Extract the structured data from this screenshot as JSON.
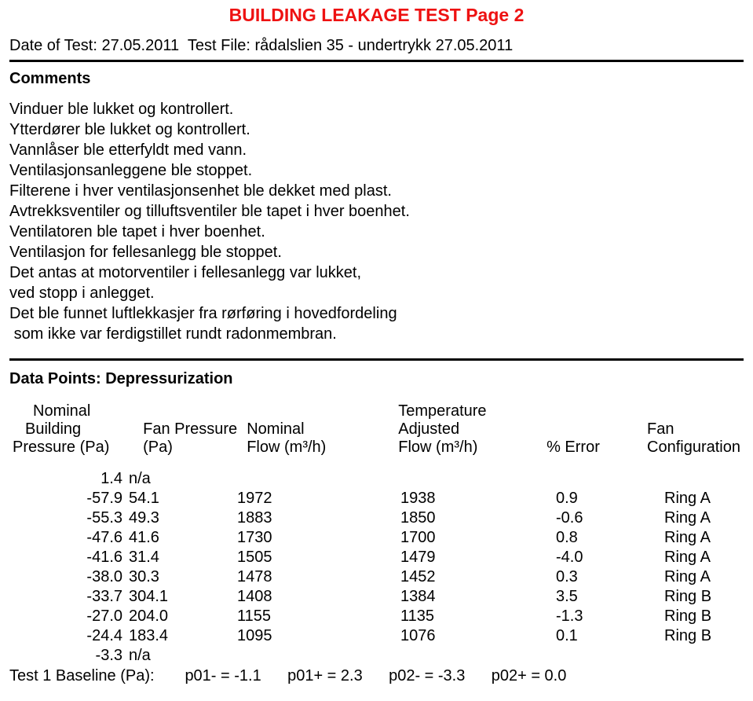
{
  "header": {
    "title": "BUILDING LEAKAGE TEST   Page 2",
    "date_label": "Date of Test:",
    "date_value": "27.05.2011",
    "file_label": "Test File:",
    "file_value": "rådalslien 35 - undertrykk 27.05.2011"
  },
  "comments": {
    "heading": "Comments",
    "lines": [
      "Vinduer ble lukket og kontrollert.",
      "Ytterdører ble lukket og kontrollert.",
      "Vannlåser ble etterfyldt med vann.",
      "Ventilasjonsanleggene ble stoppet.",
      "Filterene i hver ventilasjonsenhet ble dekket med plast.",
      "Avtrekksventiler og tilluftsventiler ble tapet i hver boenhet.",
      "Ventilatoren ble tapet i hver boenhet.",
      "Ventilasjon for fellesanlegg ble stoppet.",
      "Det antas at motorventiler i fellesanlegg var lukket,",
      "ved stopp i anlegget.",
      "Det ble funnet luftlekkasjer fra rørføring i hovedfordeling",
      " som ikke var ferdigstillet rundt radonmembran."
    ]
  },
  "datapoints": {
    "heading": "Data Points:  Depressurization",
    "col_headers": {
      "c1a": "Nominal",
      "c1b": "Building",
      "c1c": "Pressure (Pa)",
      "c2b": "Fan Pressure",
      "c2c": "(Pa)",
      "c3b": "Nominal",
      "c3c": "Flow (m³/h)",
      "c4a": "Temperature",
      "c4b": "Adjusted",
      "c4c": "Flow (m³/h)",
      "c5c": "% Error",
      "c6b": "Fan",
      "c6c": "Configuration"
    },
    "rows": [
      {
        "c1": "1.4",
        "c2": "n/a",
        "c3": "",
        "c4": "",
        "c5": "",
        "c6": ""
      },
      {
        "c1": "-57.9",
        "c2": "54.1",
        "c3": "1972",
        "c4": "1938",
        "c5": "0.9",
        "c6": "Ring A"
      },
      {
        "c1": "-55.3",
        "c2": "49.3",
        "c3": "1883",
        "c4": "1850",
        "c5": "-0.6",
        "c6": "Ring A"
      },
      {
        "c1": "-47.6",
        "c2": "41.6",
        "c3": "1730",
        "c4": "1700",
        "c5": "0.8",
        "c6": "Ring A"
      },
      {
        "c1": "-41.6",
        "c2": "31.4",
        "c3": "1505",
        "c4": "1479",
        "c5": "-4.0",
        "c6": "Ring A"
      },
      {
        "c1": "-38.0",
        "c2": "30.3",
        "c3": "1478",
        "c4": "1452",
        "c5": "0.3",
        "c6": "Ring A"
      },
      {
        "c1": "-33.7",
        "c2": "304.1",
        "c3": "1408",
        "c4": "1384",
        "c5": "3.5",
        "c6": "Ring B"
      },
      {
        "c1": "-27.0",
        "c2": "204.0",
        "c3": "1155",
        "c4": "1135",
        "c5": "-1.3",
        "c6": "Ring B"
      },
      {
        "c1": "-24.4",
        "c2": "183.4",
        "c3": "1095",
        "c4": "1076",
        "c5": "0.1",
        "c6": "Ring B"
      },
      {
        "c1": "-3.3",
        "c2": "n/a",
        "c3": "",
        "c4": "",
        "c5": "",
        "c6": ""
      }
    ],
    "baseline": {
      "label": "Test 1   Baseline (Pa):",
      "p01m": "p01- = -1.1",
      "p01p": "p01+ = 2.3",
      "p02m": "p02- = -3.3",
      "p02p": "p02+ = 0.0"
    }
  }
}
